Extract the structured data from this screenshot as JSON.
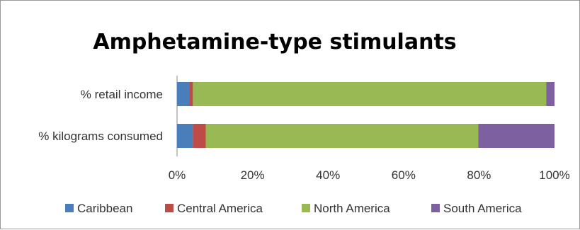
{
  "chart_data": {
    "type": "bar",
    "orientation": "horizontal",
    "stacked": true,
    "title": "Amphetamine-type stimulants",
    "categories": [
      "% retail income",
      "% kilograms consumed"
    ],
    "series": [
      {
        "name": "Caribbean",
        "color": "#4a7ebb",
        "values": [
          3.2,
          4.2
        ]
      },
      {
        "name": "Central America",
        "color": "#be4b48",
        "values": [
          1.0,
          3.4
        ]
      },
      {
        "name": "North America",
        "color": "#98b954",
        "values": [
          93.6,
          72.2
        ]
      },
      {
        "name": "South America",
        "color": "#7d60a0",
        "values": [
          2.2,
          20.2
        ]
      }
    ],
    "xlim": [
      0,
      100
    ],
    "x_ticks": [
      "0%",
      "20%",
      "40%",
      "60%",
      "80%",
      "100%"
    ],
    "grid": false,
    "legend_position": "bottom"
  }
}
